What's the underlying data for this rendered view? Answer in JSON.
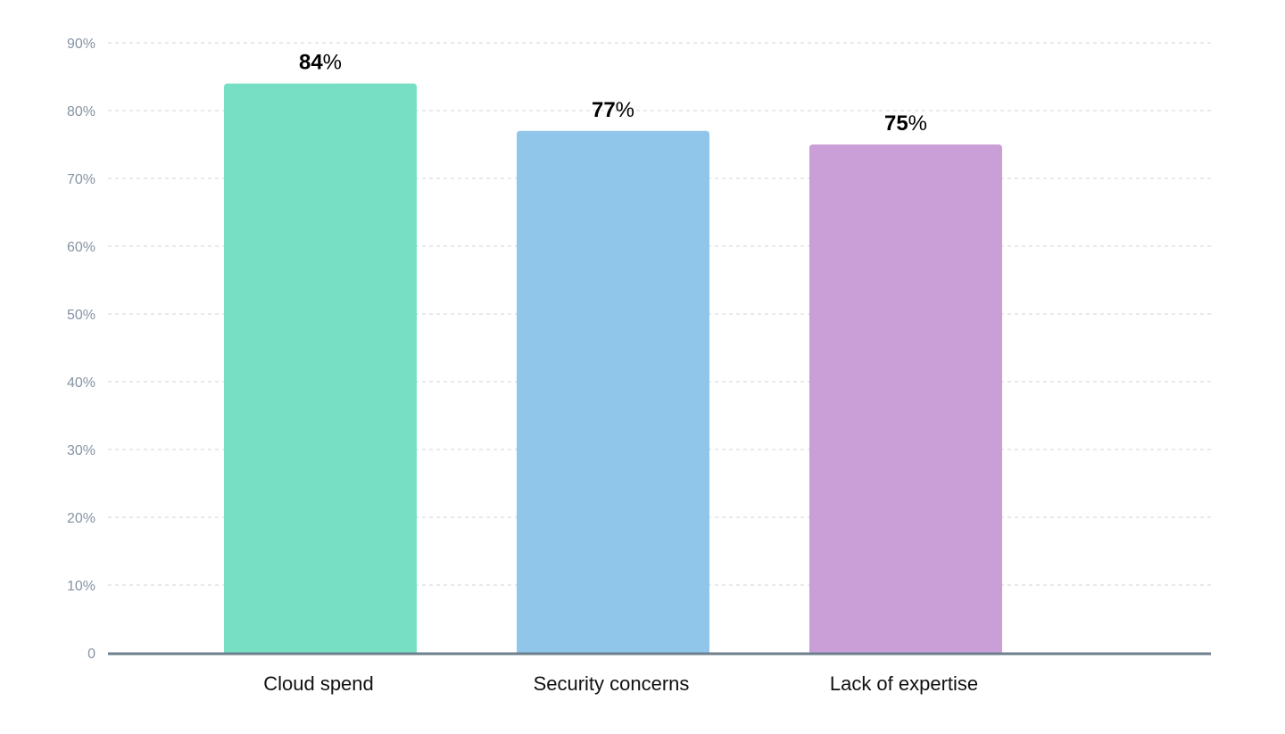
{
  "chart_data": {
    "type": "bar",
    "categories": [
      "Cloud spend",
      "Security concerns",
      "Lack of expertise"
    ],
    "values": [
      84,
      77,
      75
    ],
    "data_labels": [
      "84%",
      "77%",
      "75%"
    ],
    "colors": [
      "#77e0c4",
      "#90c6e9",
      "#ca9fd7"
    ],
    "ylim": [
      0,
      90
    ],
    "yticks": [
      0,
      10,
      20,
      30,
      40,
      50,
      60,
      70,
      80,
      90
    ],
    "ytick_labels": [
      "0",
      "10%",
      "20%",
      "30%",
      "40%",
      "50%",
      "60%",
      "70%",
      "80%",
      "90%"
    ],
    "title": "",
    "xlabel": "",
    "ylabel": "",
    "grid": true,
    "grid_color": "#cdd4dc",
    "axis_color": "#6e7f8d"
  }
}
